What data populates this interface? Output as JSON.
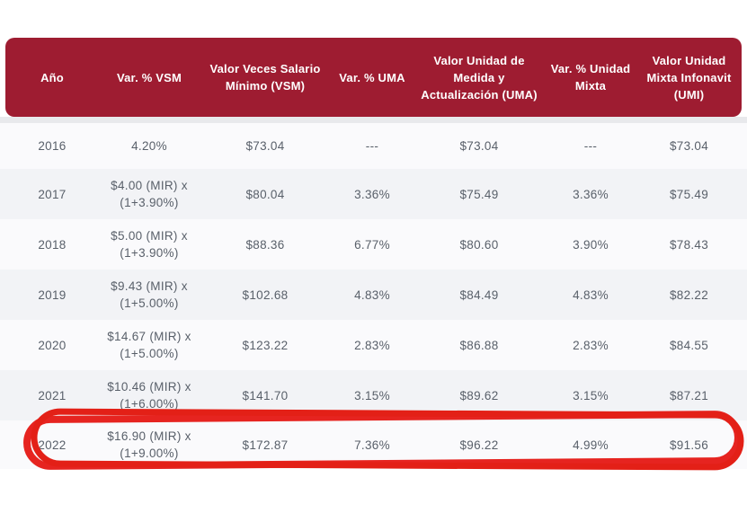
{
  "table": {
    "columns": [
      {
        "key": "year",
        "label": "Año"
      },
      {
        "key": "var_vsm",
        "label": "Var. % VSM"
      },
      {
        "key": "vsm",
        "label": "Valor Veces Salario Mínimo (VSM)"
      },
      {
        "key": "var_uma",
        "label": "Var. % UMA"
      },
      {
        "key": "uma",
        "label": "Valor Unidad de Medida y Actualización (UMA)"
      },
      {
        "key": "var_mixta",
        "label": "Var. % Unidad Mixta"
      },
      {
        "key": "umi",
        "label": "Valor Unidad Mixta Infonavit (UMI)"
      }
    ],
    "rows": [
      {
        "cells": [
          "2016",
          "4.20%",
          "$73.04",
          "---",
          "$73.04",
          "---",
          "$73.04"
        ],
        "highlighted": false
      },
      {
        "cells": [
          "2017",
          "$4.00 (MIR) x\n(1+3.90%)",
          "$80.04",
          "3.36%",
          "$75.49",
          "3.36%",
          "$75.49"
        ],
        "highlighted": false
      },
      {
        "cells": [
          "2018",
          "$5.00 (MIR) x\n(1+3.90%)",
          "$88.36",
          "6.77%",
          "$80.60",
          "3.90%",
          "$78.43"
        ],
        "highlighted": false
      },
      {
        "cells": [
          "2019",
          "$9.43 (MIR) x\n(1+5.00%)",
          "$102.68",
          "4.83%",
          "$84.49",
          "4.83%",
          "$82.22"
        ],
        "highlighted": false
      },
      {
        "cells": [
          "2020",
          "$14.67 (MIR) x\n(1+5.00%)",
          "$123.22",
          "2.83%",
          "$86.88",
          "2.83%",
          "$84.55"
        ],
        "highlighted": false
      },
      {
        "cells": [
          "2021",
          "$10.46 (MIR) x\n(1+6.00%)",
          "$141.70",
          "3.15%",
          "$89.62",
          "3.15%",
          "$87.21"
        ],
        "highlighted": false
      },
      {
        "cells": [
          "2022",
          "$16.90 (MIR) x\n(1+9.00%)",
          "$172.87",
          "7.36%",
          "$96.22",
          "4.99%",
          "$91.56"
        ],
        "highlighted": true
      }
    ]
  },
  "annotation": {
    "shape": "hand-drawn-oval",
    "highlights_row": "2022",
    "color": "#e62420"
  },
  "colors": {
    "header_bg": "#9e1c31",
    "header_text": "#ffffff",
    "row_even_bg": "#fafafc",
    "row_odd_bg": "#f2f3f6",
    "separator": "#e8e9ec",
    "body_text": "#59606a",
    "annotation_red": "#e62420"
  }
}
